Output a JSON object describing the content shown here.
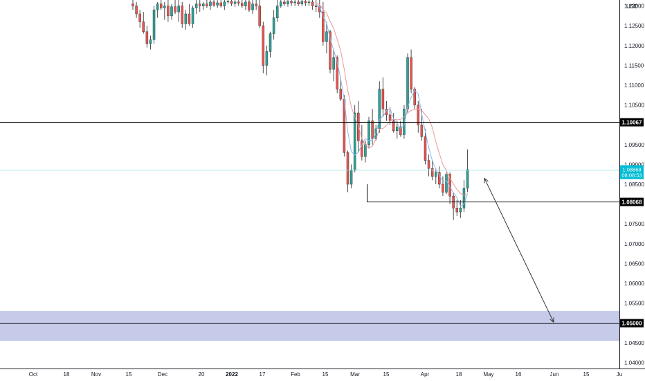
{
  "chart_data": {
    "type": "candlestick",
    "currency": "USD",
    "y_axis": {
      "range": [
        1.0385,
        1.1315
      ],
      "ticks": [
        "1.13000",
        "1.12500",
        "1.12000",
        "1.11500",
        "1.11000",
        "1.10500",
        "1.09500",
        "1.09000",
        "1.08500",
        "1.07500",
        "1.07000",
        "1.06500",
        "1.06000",
        "1.05500",
        "1.04500",
        "1.04000"
      ],
      "tick_values": [
        1.13,
        1.125,
        1.12,
        1.115,
        1.11,
        1.105,
        1.095,
        1.09,
        1.085,
        1.075,
        1.07,
        1.065,
        1.06,
        1.055,
        1.045,
        1.04
      ]
    },
    "x_axis": {
      "labels": [
        "Oct",
        "18",
        "Nov",
        "15",
        "Dec",
        "20",
        "2022",
        "17",
        "Feb",
        "15",
        "Mar",
        "15",
        "Apr",
        "18",
        "May",
        "16",
        "Jun",
        "15",
        "Ju"
      ],
      "bold_labels": [
        "2022"
      ]
    },
    "horizontal_lines": [
      {
        "value": 1.10067,
        "label": "1.10067",
        "color": "#000000"
      },
      {
        "value": 1.08068,
        "label": "1.08068",
        "color": "#000000"
      },
      {
        "value": 1.05,
        "label": "1.05000",
        "color": "#000000"
      }
    ],
    "current_price": {
      "value": 1.08868,
      "label": "1.08868",
      "countdown": "08:08:53",
      "color": "#00bcd4"
    },
    "zone": {
      "from": 1.0455,
      "to": 1.053,
      "color": "#c5cbe8"
    },
    "projection_arrow": {
      "from_price": 1.0865,
      "to_price": 1.0502
    },
    "candles": [
      [
        1.1305,
        1.1315,
        1.129,
        1.13
      ],
      [
        1.13,
        1.131,
        1.127,
        1.128
      ],
      [
        1.128,
        1.129,
        1.1245,
        1.126
      ],
      [
        1.126,
        1.1285,
        1.123,
        1.1235
      ],
      [
        1.1235,
        1.125,
        1.1195,
        1.1205
      ],
      [
        1.1205,
        1.1225,
        1.119,
        1.1215
      ],
      [
        1.1215,
        1.13,
        1.1205,
        1.129
      ],
      [
        1.129,
        1.131,
        1.127,
        1.1305
      ],
      [
        1.1305,
        1.1315,
        1.129,
        1.1295
      ],
      [
        1.1295,
        1.131,
        1.1265,
        1.13
      ],
      [
        1.13,
        1.1315,
        1.126,
        1.1275
      ],
      [
        1.1275,
        1.1305,
        1.1265,
        1.1298
      ],
      [
        1.1298,
        1.1315,
        1.128,
        1.1285
      ],
      [
        1.1285,
        1.1315,
        1.126,
        1.13
      ],
      [
        1.13,
        1.131,
        1.1245,
        1.1255
      ],
      [
        1.1255,
        1.129,
        1.124,
        1.128
      ],
      [
        1.128,
        1.1305,
        1.125,
        1.1255
      ],
      [
        1.1255,
        1.13,
        1.1245,
        1.1295
      ],
      [
        1.1295,
        1.1315,
        1.128,
        1.1305
      ],
      [
        1.1305,
        1.1315,
        1.1285,
        1.13
      ],
      [
        1.13,
        1.131,
        1.129,
        1.1305
      ],
      [
        1.1305,
        1.1315,
        1.1295,
        1.13
      ],
      [
        1.13,
        1.1315,
        1.129,
        1.131
      ],
      [
        1.131,
        1.1315,
        1.1298,
        1.1302
      ],
      [
        1.1302,
        1.1315,
        1.1295,
        1.1308
      ],
      [
        1.1308,
        1.1315,
        1.1296,
        1.13
      ],
      [
        1.13,
        1.1315,
        1.129,
        1.131
      ],
      [
        1.131,
        1.1315,
        1.1305,
        1.1312
      ],
      [
        1.1312,
        1.1315,
        1.13,
        1.1306
      ],
      [
        1.1306,
        1.1315,
        1.1298,
        1.131
      ],
      [
        1.131,
        1.1315,
        1.13,
        1.1307
      ],
      [
        1.1307,
        1.1315,
        1.1295,
        1.13
      ],
      [
        1.13,
        1.1315,
        1.129,
        1.131
      ],
      [
        1.131,
        1.1315,
        1.1285,
        1.129
      ],
      [
        1.129,
        1.1315,
        1.128,
        1.1305
      ],
      [
        1.1305,
        1.1315,
        1.129,
        1.13
      ],
      [
        1.13,
        1.1315,
        1.1245,
        1.125
      ],
      [
        1.125,
        1.126,
        1.113,
        1.115
      ],
      [
        1.115,
        1.12,
        1.1125,
        1.1185
      ],
      [
        1.1185,
        1.1235,
        1.117,
        1.123
      ],
      [
        1.123,
        1.129,
        1.1215,
        1.127
      ],
      [
        1.127,
        1.1315,
        1.126,
        1.13
      ],
      [
        1.13,
        1.1315,
        1.1295,
        1.131
      ],
      [
        1.131,
        1.1315,
        1.13,
        1.1305
      ],
      [
        1.1305,
        1.1315,
        1.1298,
        1.1312
      ],
      [
        1.1312,
        1.1315,
        1.13,
        1.1308
      ],
      [
        1.1308,
        1.1315,
        1.13,
        1.131
      ],
      [
        1.131,
        1.1315,
        1.13,
        1.1305
      ],
      [
        1.1305,
        1.1315,
        1.13,
        1.1312
      ],
      [
        1.1312,
        1.1315,
        1.13,
        1.1308
      ],
      [
        1.1308,
        1.1315,
        1.13,
        1.131
      ],
      [
        1.131,
        1.1315,
        1.129,
        1.13
      ],
      [
        1.13,
        1.1315,
        1.1285,
        1.1298
      ],
      [
        1.1298,
        1.1315,
        1.127,
        1.1285
      ],
      [
        1.1285,
        1.131,
        1.12,
        1.121
      ],
      [
        1.121,
        1.126,
        1.118,
        1.1235
      ],
      [
        1.1235,
        1.124,
        1.113,
        1.114
      ],
      [
        1.114,
        1.119,
        1.111,
        1.117
      ],
      [
        1.117,
        1.1175,
        1.108,
        1.109
      ],
      [
        1.109,
        1.112,
        1.106,
        1.1065
      ],
      [
        1.1065,
        1.1075,
        1.092,
        1.093
      ],
      [
        1.093,
        1.0935,
        1.083,
        1.085
      ],
      [
        1.085,
        1.09,
        1.084,
        1.0885
      ],
      [
        1.0885,
        1.105,
        1.088,
        1.103
      ],
      [
        1.103,
        1.106,
        1.093,
        1.096
      ],
      [
        1.096,
        1.1,
        1.091,
        1.092
      ],
      [
        1.092,
        1.096,
        1.0905,
        1.095
      ],
      [
        1.095,
        1.102,
        1.094,
        1.101
      ],
      [
        1.101,
        1.104,
        1.095,
        1.0965
      ],
      [
        1.0965,
        1.1,
        1.096,
        1.099
      ],
      [
        1.099,
        1.111,
        1.098,
        1.109
      ],
      [
        1.109,
        1.112,
        1.102,
        1.104
      ],
      [
        1.104,
        1.106,
        1.101,
        1.1025
      ],
      [
        1.1025,
        1.1045,
        1.1,
        1.101
      ],
      [
        1.101,
        1.103,
        1.098,
        1.0985
      ],
      [
        1.0985,
        1.101,
        1.0965,
        1.0995
      ],
      [
        1.0995,
        1.101,
        1.097,
        1.0975
      ],
      [
        1.0975,
        1.105,
        1.0965,
        1.104
      ],
      [
        1.104,
        1.118,
        1.103,
        1.117
      ],
      [
        1.117,
        1.119,
        1.108,
        1.109
      ],
      [
        1.109,
        1.1095,
        1.104,
        1.105
      ],
      [
        1.105,
        1.106,
        1.098,
        1.1
      ],
      [
        1.1,
        1.104,
        1.096,
        1.097
      ],
      [
        1.097,
        1.099,
        1.09,
        1.091
      ],
      [
        1.091,
        1.0925,
        1.087,
        1.089
      ],
      [
        1.089,
        1.091,
        1.086,
        1.087
      ],
      [
        1.087,
        1.089,
        1.085,
        1.088
      ],
      [
        1.088,
        1.0895,
        1.084,
        1.085
      ],
      [
        1.085,
        1.087,
        1.082,
        1.083
      ],
      [
        1.083,
        1.088,
        1.0825,
        1.0875
      ],
      [
        1.0875,
        1.088,
        1.08,
        1.082
      ],
      [
        1.082,
        1.083,
        1.076,
        1.079
      ],
      [
        1.079,
        1.081,
        1.077,
        1.078
      ],
      [
        1.078,
        1.081,
        1.0765,
        1.079
      ],
      [
        1.079,
        1.086,
        1.078,
        1.084
      ],
      [
        1.084,
        1.0938,
        1.083,
        1.0887
      ]
    ]
  }
}
